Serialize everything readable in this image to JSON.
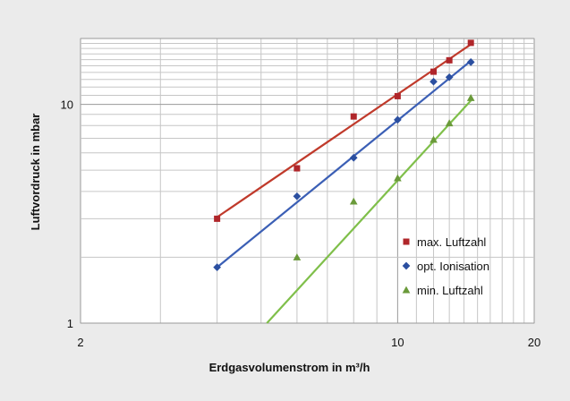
{
  "chart_data": {
    "type": "scatter",
    "xlabel": "Erdgasvolumenstrom in m³/h",
    "ylabel": "Luftvordruck in mbar",
    "x_scale": "log",
    "y_scale": "log",
    "xlim": [
      2,
      20
    ],
    "ylim": [
      1,
      20
    ],
    "x_ticks": [
      2,
      10,
      20
    ],
    "x_tick_labels": [
      "2",
      "10",
      "20"
    ],
    "y_ticks": [
      1,
      10
    ],
    "y_tick_labels": [
      "1",
      "10"
    ],
    "grid": true,
    "legend_position": "bottom-right",
    "series": [
      {
        "name": "max. Luftzahl",
        "marker": "square",
        "color": "#b0262a",
        "trendline_color": "#c03a2b",
        "x": [
          4,
          6,
          8,
          10,
          12,
          13,
          14.5
        ],
        "y": [
          3.0,
          5.1,
          8.8,
          10.9,
          14.1,
          15.9,
          19.1
        ],
        "trendline": {
          "x": [
            4,
            14.5
          ],
          "y": [
            3.05,
            18.8
          ]
        }
      },
      {
        "name": "opt. Ionisation",
        "marker": "diamond",
        "color": "#2b4fa0",
        "trendline_color": "#3b5fb5",
        "x": [
          4,
          6,
          8,
          10,
          12,
          13,
          14.5
        ],
        "y": [
          1.8,
          3.8,
          5.7,
          8.5,
          12.7,
          13.3,
          15.6
        ],
        "trendline": {
          "x": [
            4,
            14.5
          ],
          "y": [
            1.8,
            15.8
          ]
        }
      },
      {
        "name": "min. Luftzahl",
        "marker": "triangle",
        "color": "#6a9a3a",
        "trendline_color": "#7fbf4a",
        "x": [
          6,
          8,
          10,
          12,
          13,
          14.5
        ],
        "y": [
          2.0,
          3.6,
          4.6,
          6.9,
          8.2,
          10.7
        ],
        "trendline": {
          "x": [
            5.15,
            14.5
          ],
          "y": [
            1.0,
            10.4
          ]
        }
      }
    ]
  }
}
